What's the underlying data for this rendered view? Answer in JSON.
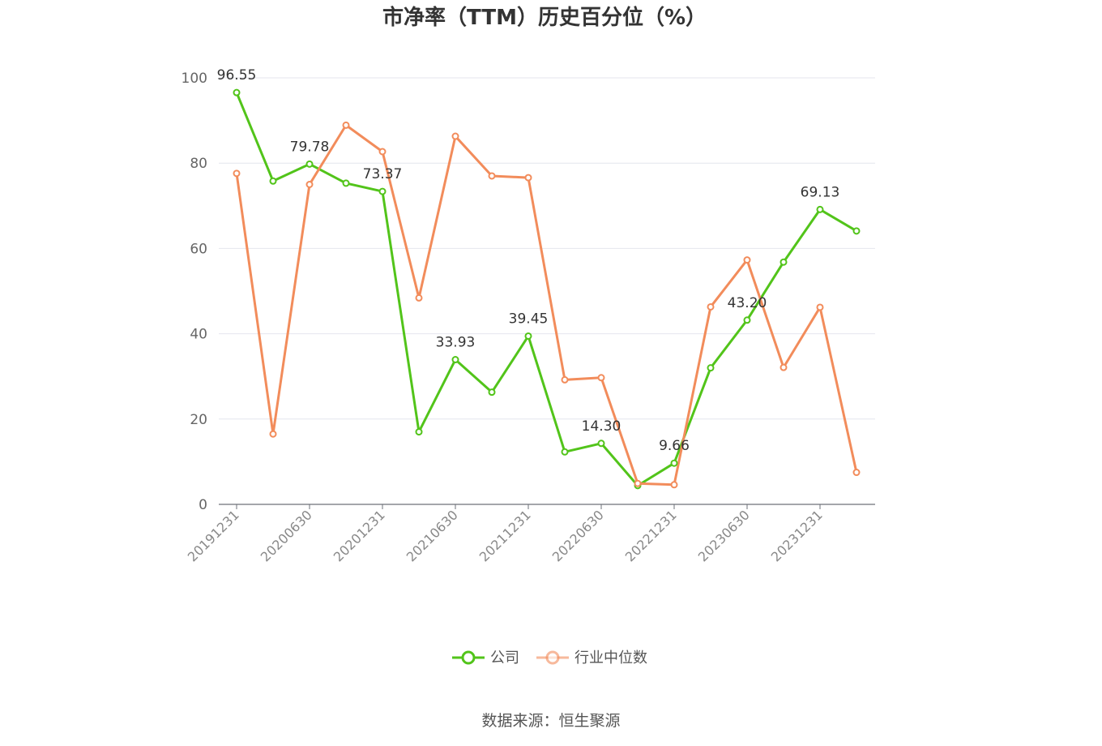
{
  "chart_data": {
    "type": "line",
    "title": "市净率（TTM）历史百分位（%）",
    "source": "数据来源：恒生聚源",
    "ylim": [
      0,
      100
    ],
    "yticks": [
      0,
      20,
      40,
      60,
      80,
      100
    ],
    "grid": true,
    "legend_position": "bottom",
    "x": [
      "20191231",
      "20200331",
      "20200630",
      "20200930",
      "20201231",
      "20210331",
      "20210630",
      "20210930",
      "20211231",
      "20220331",
      "20220630",
      "20220930",
      "20221231",
      "20230331",
      "20230630",
      "20230930",
      "20231231",
      "20240331"
    ],
    "x_tick_labels": [
      "20191231",
      "20200630",
      "20201231",
      "20210630",
      "20211231",
      "20220630",
      "20221231",
      "20230630",
      "20231231"
    ],
    "series": [
      {
        "name": "公司",
        "color": "#52c41a",
        "values": [
          96.55,
          75.8,
          79.78,
          75.3,
          73.37,
          17.0,
          33.93,
          26.3,
          39.45,
          12.3,
          14.3,
          4.4,
          9.66,
          32.0,
          43.2,
          56.8,
          69.13,
          64.1
        ],
        "labels": [
          {
            "index": 0,
            "text": "96.55"
          },
          {
            "index": 2,
            "text": "79.78"
          },
          {
            "index": 4,
            "text": "73.37"
          },
          {
            "index": 6,
            "text": "33.93"
          },
          {
            "index": 8,
            "text": "39.45"
          },
          {
            "index": 10,
            "text": "14.30"
          },
          {
            "index": 12,
            "text": "9.66"
          },
          {
            "index": 14,
            "text": "43.20"
          },
          {
            "index": 16,
            "text": "69.13"
          }
        ]
      },
      {
        "name": "行业中位数",
        "color": "#f28c5b",
        "values": [
          77.6,
          16.5,
          75.0,
          88.9,
          82.7,
          48.4,
          86.3,
          77.0,
          76.6,
          29.2,
          29.7,
          4.9,
          4.6,
          46.3,
          57.3,
          32.1,
          46.2,
          7.5
        ]
      }
    ]
  }
}
